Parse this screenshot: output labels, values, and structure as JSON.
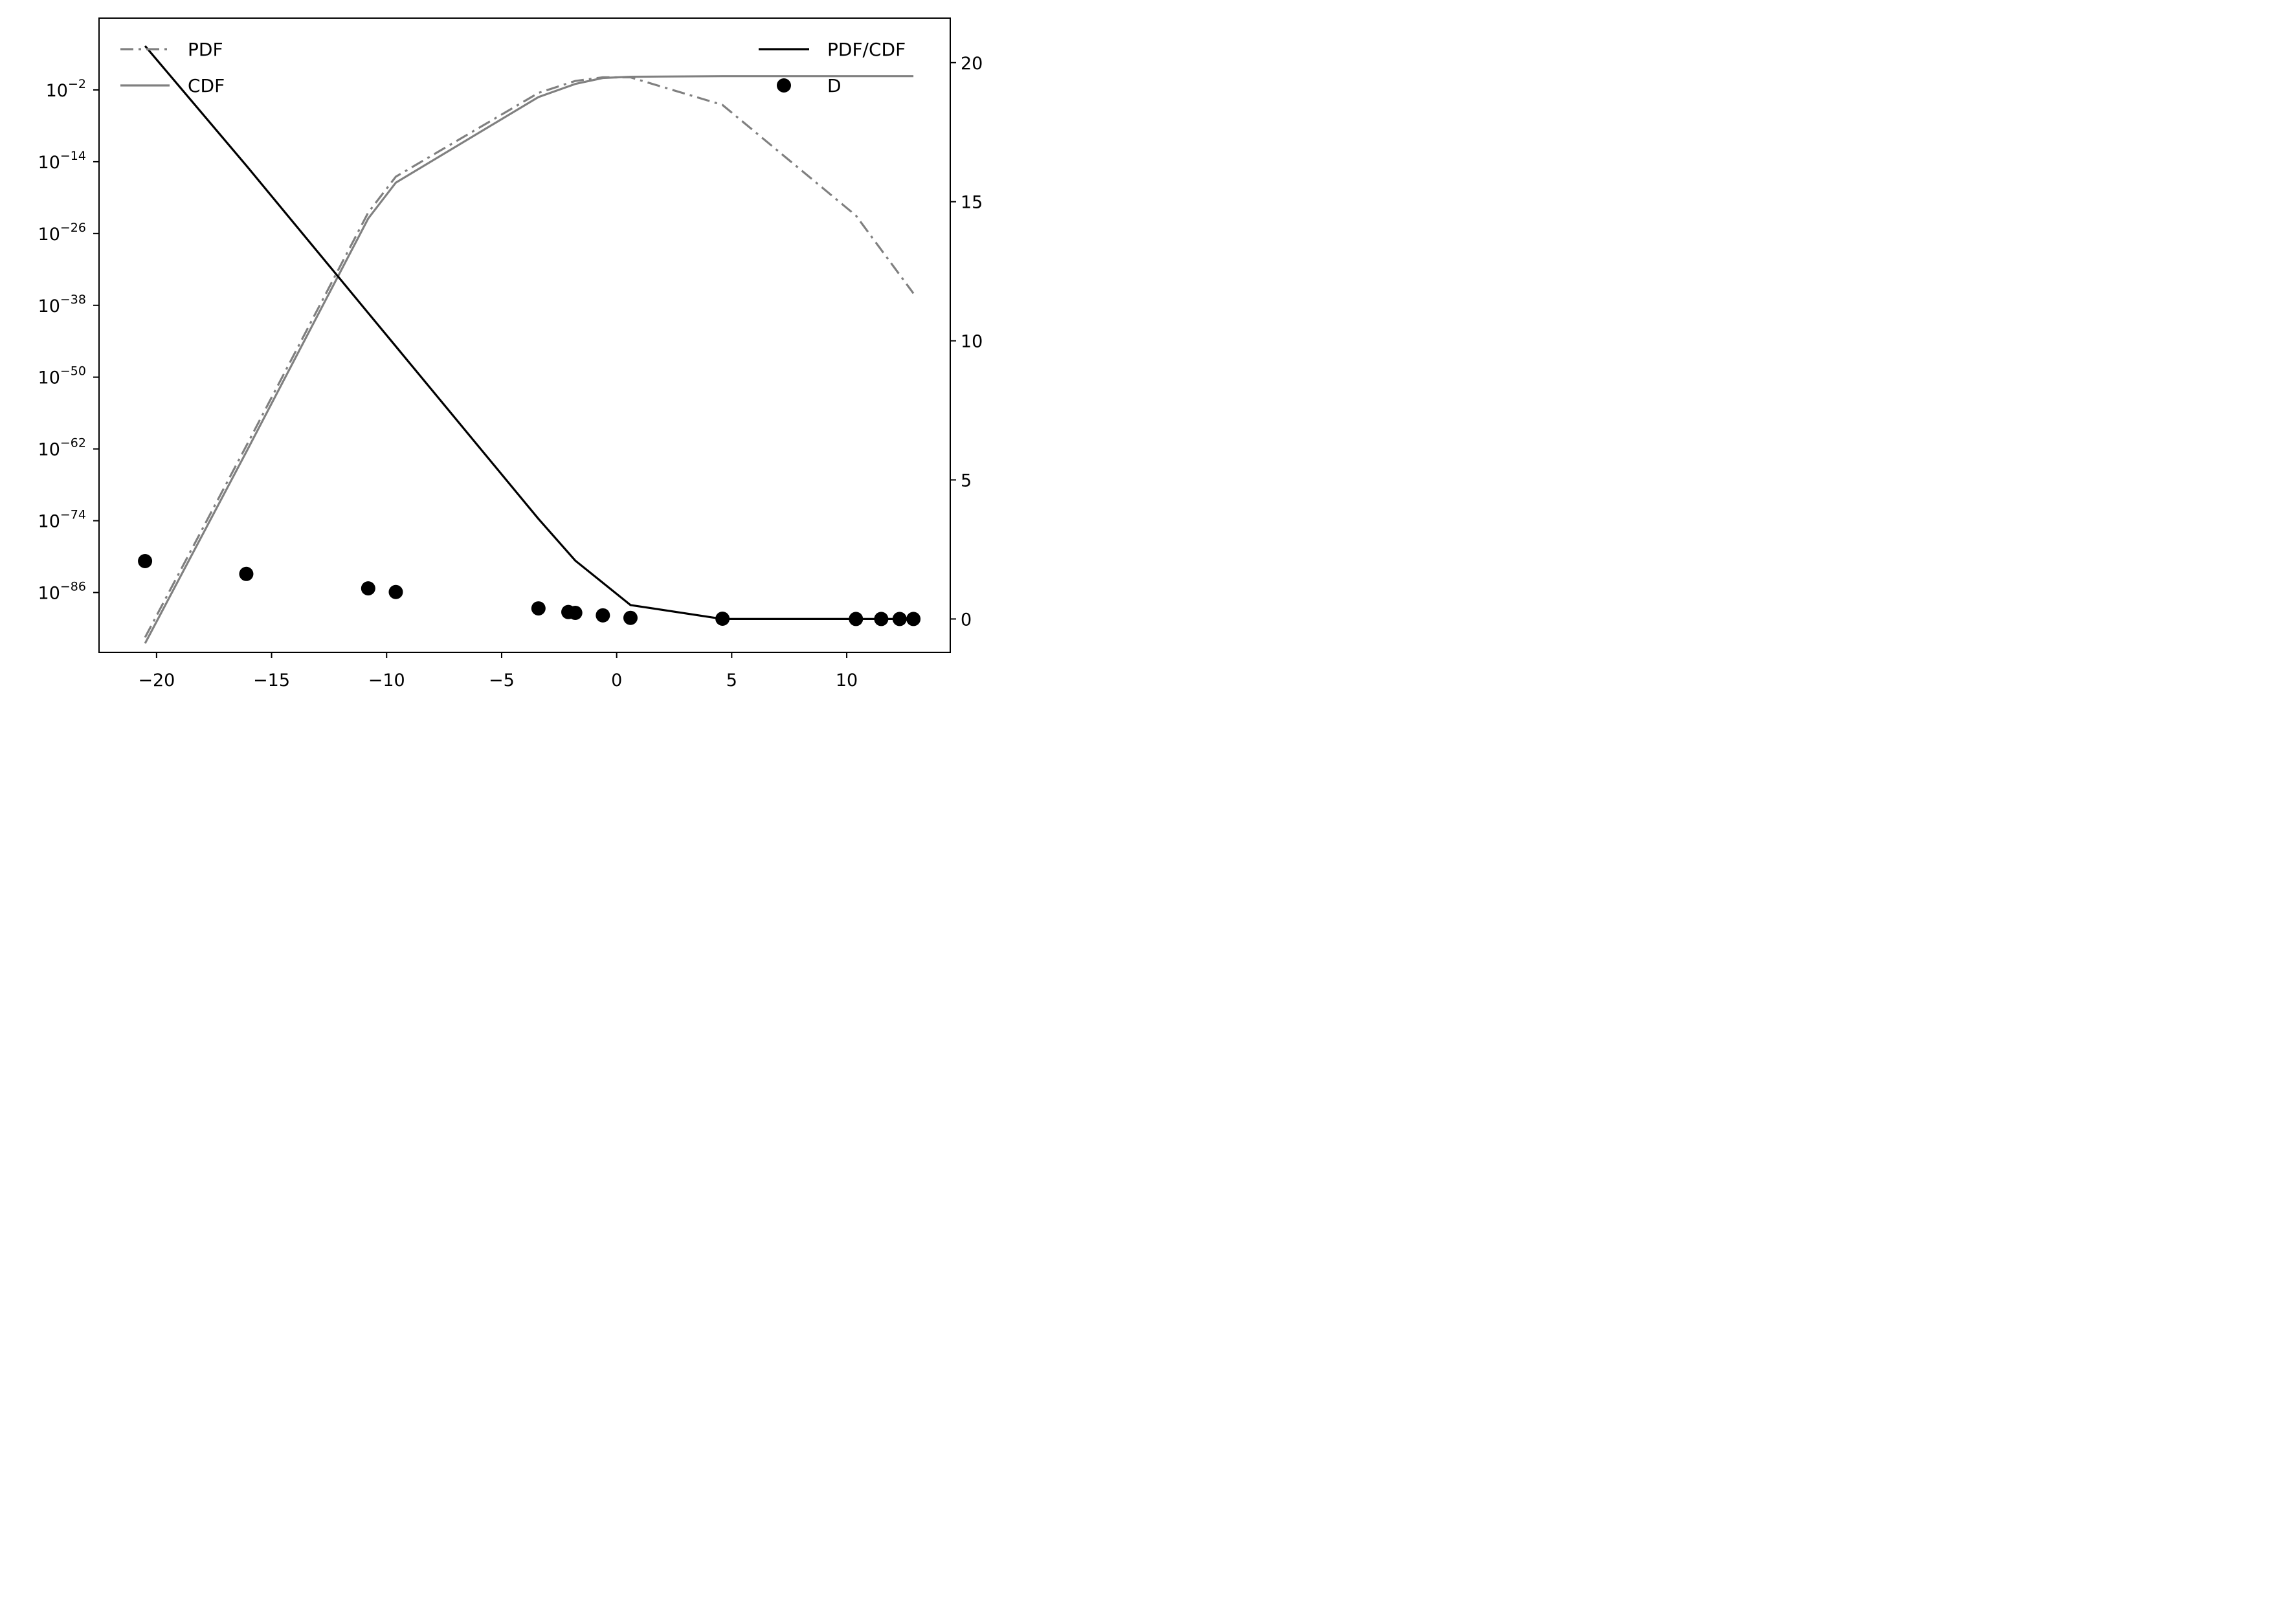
{
  "chart_data": {
    "type": "line",
    "title": "",
    "xlabel": "",
    "ylabel_left": "",
    "ylabel_right": "",
    "xlim": [
      -22.5,
      14.5
    ],
    "ylim_left_log10": [
      -96,
      10
    ],
    "ylim_right": [
      -1.2,
      21.6
    ],
    "x_ticks": [
      -20,
      -15,
      -10,
      -5,
      0,
      5,
      10
    ],
    "x_tick_labels": [
      "−20",
      "−15",
      "−10",
      "−5",
      "0",
      "5",
      "10"
    ],
    "y_left_ticks": [
      {
        "base": "10",
        "exp": "−2",
        "value_log10": -2
      },
      {
        "base": "10",
        "exp": "−14",
        "value_log10": -14
      },
      {
        "base": "10",
        "exp": "−26",
        "value_log10": -26
      },
      {
        "base": "10",
        "exp": "−38",
        "value_log10": -38
      },
      {
        "base": "10",
        "exp": "−50",
        "value_log10": -50
      },
      {
        "base": "10",
        "exp": "−62",
        "value_log10": -62
      },
      {
        "base": "10",
        "exp": "−74",
        "value_log10": -74
      },
      {
        "base": "10",
        "exp": "−86",
        "value_log10": -86
      }
    ],
    "y_right_ticks": [
      0,
      5,
      10,
      15,
      20
    ],
    "y_right_tick_labels": [
      "0",
      "5",
      "10",
      "15",
      "20"
    ],
    "grid": false,
    "legend_left": {
      "placement": "upper-left",
      "entries": [
        {
          "label": "PDF",
          "style": "dashdot",
          "color": "#808080"
        },
        {
          "label": "CDF",
          "style": "solid",
          "color": "#808080"
        }
      ]
    },
    "legend_right": {
      "placement": "upper-right",
      "entries": [
        {
          "label": "PDF/CDF",
          "style": "solid",
          "color": "#000000"
        },
        {
          "label": "D",
          "style": "marker",
          "color": "#000000"
        }
      ]
    },
    "series": [
      {
        "name": "PDF",
        "axis": "left",
        "scale": "log10",
        "style": "dashdot",
        "color": "#808080",
        "x": [
          -20.5,
          -16.1,
          -10.8,
          -9.6,
          -3.4,
          -1.8,
          -0.6,
          0.6,
          4.6,
          10.4,
          12.9
        ],
        "log10_y": [
          -93.5,
          -61.5,
          -22.5,
          -16.5,
          -2.5,
          -0.5,
          0.1,
          0.1,
          -4.5,
          -23,
          -36
        ]
      },
      {
        "name": "CDF",
        "axis": "left",
        "scale": "log10",
        "style": "solid",
        "color": "#808080",
        "x": [
          -20.5,
          -16.1,
          -10.8,
          -9.6,
          -3.4,
          -1.8,
          -0.6,
          0.6,
          4.6,
          10.4,
          12.9
        ],
        "log10_y": [
          -94.5,
          -62.5,
          -23.5,
          -17.5,
          -3.2,
          -1.0,
          0.0,
          0.2,
          0.3,
          0.3,
          0.3
        ]
      },
      {
        "name": "PDF/CDF",
        "axis": "right",
        "style": "solid",
        "color": "#000000",
        "x": [
          -20.5,
          -16.1,
          -10.8,
          -9.6,
          -3.4,
          -1.8,
          -0.6,
          0.6,
          4.6,
          10.4,
          12.9
        ],
        "y": [
          20.6,
          16.3,
          11.0,
          9.8,
          3.6,
          2.1,
          1.3,
          0.5,
          0.0,
          0.0,
          0.0
        ]
      },
      {
        "name": "D",
        "axis": "right",
        "style": "marker",
        "color": "#000000",
        "x": [
          -20.5,
          -16.1,
          -10.8,
          -9.6,
          -3.4,
          -2.1,
          -1.8,
          -0.6,
          0.6,
          4.6,
          10.4,
          11.5,
          12.3,
          12.9
        ],
        "y": [
          2.08,
          1.62,
          1.1,
          0.97,
          0.38,
          0.25,
          0.22,
          0.13,
          0.04,
          0.01,
          0.0,
          0.0,
          0.0,
          0.0
        ]
      }
    ]
  }
}
